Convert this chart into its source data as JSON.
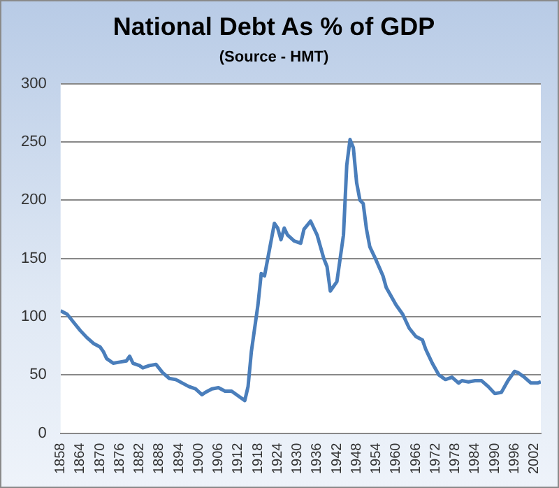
{
  "chart_data": {
    "type": "line",
    "title": "National Debt As % of GDP",
    "subtitle": "(Source - HMT)",
    "x": [
      1858,
      1860,
      1862,
      1864,
      1866,
      1868,
      1870,
      1871,
      1872,
      1874,
      1876,
      1878,
      1879,
      1880,
      1882,
      1883,
      1885,
      1887,
      1889,
      1891,
      1893,
      1895,
      1897,
      1899,
      1901,
      1902,
      1904,
      1906,
      1908,
      1910,
      1912,
      1914,
      1915,
      1916,
      1918,
      1919,
      1920,
      1922,
      1923,
      1924,
      1925,
      1926,
      1927,
      1929,
      1931,
      1932,
      1934,
      1936,
      1937,
      1938,
      1939,
      1940,
      1942,
      1944,
      1945,
      1946,
      1947,
      1948,
      1949,
      1950,
      1951,
      1952,
      1954,
      1956,
      1957,
      1960,
      1962,
      1964,
      1966,
      1968,
      1969,
      1971,
      1973,
      1975,
      1977,
      1979,
      1980,
      1982,
      1984,
      1986,
      1988,
      1990,
      1992,
      1994,
      1996,
      1997,
      1999,
      2001,
      2003,
      2004
    ],
    "series": [
      {
        "color": "#4a7ebb",
        "values": [
          105,
          102,
          95,
          88,
          82,
          77,
          74,
          70,
          64,
          60,
          61,
          62,
          66,
          60,
          58,
          56,
          58,
          59,
          52,
          47,
          46,
          43,
          40,
          38,
          33,
          35,
          38,
          39,
          36,
          36,
          32,
          28,
          40,
          70,
          110,
          137,
          135,
          165,
          180,
          176,
          166,
          176,
          170,
          165,
          163,
          175,
          182,
          170,
          160,
          150,
          143,
          122,
          130,
          170,
          230,
          252,
          245,
          215,
          200,
          197,
          175,
          160,
          148,
          135,
          125,
          110,
          102,
          90,
          83,
          80,
          72,
          60,
          50,
          46,
          48,
          43,
          45,
          44,
          45,
          45,
          40,
          34,
          35,
          45,
          53,
          52,
          48,
          43,
          43,
          44
        ]
      }
    ],
    "xlim": [
      1858,
      2004
    ],
    "xticks": [
      1858,
      1864,
      1870,
      1876,
      1882,
      1888,
      1894,
      1900,
      1906,
      1912,
      1918,
      1924,
      1930,
      1936,
      1942,
      1948,
      1954,
      1960,
      1966,
      1972,
      1978,
      1984,
      1990,
      1996,
      2002
    ],
    "ylim": [
      0,
      300
    ],
    "yticks": [
      0,
      50,
      100,
      150,
      200,
      250,
      300
    ],
    "grid": "y",
    "legend": false,
    "marker": "none",
    "line_style": "solid"
  }
}
